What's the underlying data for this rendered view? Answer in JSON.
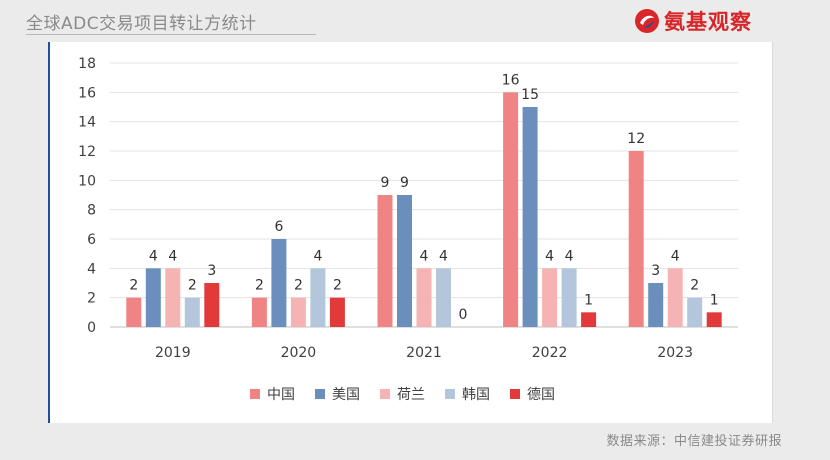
{
  "page": {
    "title": "全球ADC交易项目转让方统计",
    "logo_text": "氨基观察",
    "source": "数据来源：中信建投证券研报"
  },
  "colors": {
    "title": "#8a8a8a",
    "logo_red": "#d8262a",
    "panel_border": "#1f4e9a"
  },
  "chart_data": {
    "type": "bar",
    "title": "",
    "xlabel": "",
    "ylabel": "",
    "ylim": [
      0,
      18
    ],
    "yticks": [
      0,
      2,
      4,
      6,
      8,
      10,
      12,
      14,
      16,
      18
    ],
    "grid": true,
    "legend_position": "bottom",
    "categories": [
      "2019",
      "2020",
      "2021",
      "2022",
      "2023"
    ],
    "series": [
      {
        "name": "中国",
        "color": "#f08383",
        "values": [
          2,
          2,
          9,
          16,
          12
        ]
      },
      {
        "name": "美国",
        "color": "#6a8fbd",
        "values": [
          4,
          6,
          9,
          15,
          3
        ]
      },
      {
        "name": "荷兰",
        "color": "#f6b3b3",
        "values": [
          4,
          2,
          4,
          4,
          4
        ]
      },
      {
        "name": "韩国",
        "color": "#b3c6dc",
        "values": [
          2,
          4,
          4,
          4,
          2
        ]
      },
      {
        "name": "德国",
        "color": "#e2393b",
        "values": [
          3,
          2,
          0,
          1,
          1
        ]
      }
    ]
  }
}
